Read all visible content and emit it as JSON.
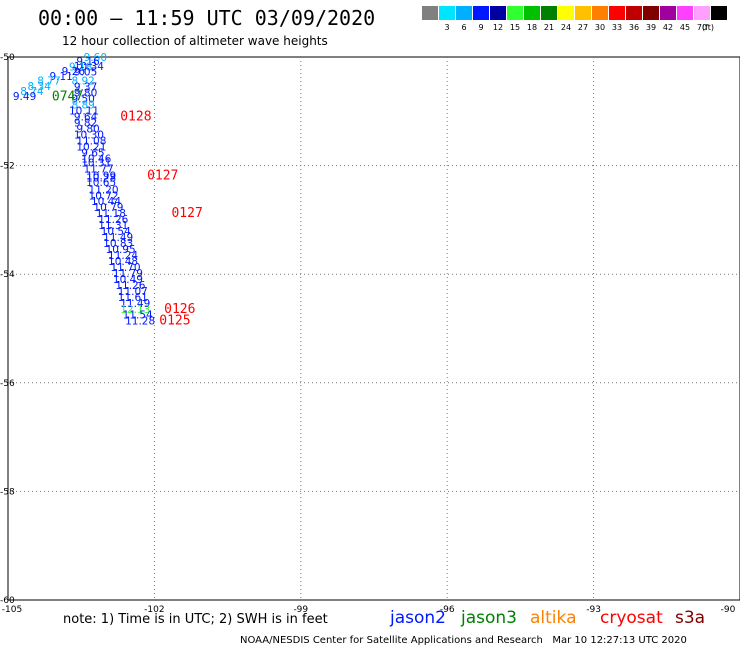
{
  "header": {
    "title": "00:00 – 11:59 UTC 03/09/2020",
    "subtitle": "12 hour collection of altimeter wave heights"
  },
  "scale": {
    "unit_label": "(ft)",
    "bins": [
      {
        "label": "",
        "color": "#808080"
      },
      {
        "label": "3",
        "color": "#00e5ff"
      },
      {
        "label": "6",
        "color": "#00b0ff"
      },
      {
        "label": "9",
        "color": "#0018ff"
      },
      {
        "label": "12",
        "color": "#0000a0"
      },
      {
        "label": "15",
        "color": "#30ff30"
      },
      {
        "label": "18",
        "color": "#00c000"
      },
      {
        "label": "21",
        "color": "#008000"
      },
      {
        "label": "24",
        "color": "#ffff00"
      },
      {
        "label": "27",
        "color": "#ffc000"
      },
      {
        "label": "30",
        "color": "#ff8000"
      },
      {
        "label": "33",
        "color": "#ff0000"
      },
      {
        "label": "36",
        "color": "#c00000"
      },
      {
        "label": "39",
        "color": "#800000"
      },
      {
        "label": "42",
        "color": "#a000a0"
      },
      {
        "label": "45",
        "color": "#ff40ff"
      },
      {
        "label": "70",
        "color": "#ffa0ff"
      },
      {
        "label": "",
        "color": "#000000"
      }
    ]
  },
  "axes": {
    "lon_ticks": [
      "-105",
      "-102",
      "-99",
      "-96",
      "-93",
      "-90"
    ],
    "lat_ticks": [
      "-50",
      "-52",
      "-54",
      "-56",
      "-58",
      "-60"
    ]
  },
  "tracks": {
    "left_track": [
      {
        "lon": -103.45,
        "lat": -50.07,
        "v": "9.60",
        "c": "#00b0ff"
      },
      {
        "lon": -103.6,
        "lat": -50.15,
        "v": "9.16",
        "c": "#0018ff"
      },
      {
        "lon": -103.65,
        "lat": -50.24,
        "v": "10.34",
        "c": "#0018ff"
      },
      {
        "lon": -103.75,
        "lat": -50.25,
        "v": "9.18",
        "c": "#00b0ff"
      },
      {
        "lon": -103.9,
        "lat": -50.33,
        "v": "9.26",
        "c": "#0018ff"
      },
      {
        "lon": -103.65,
        "lat": -50.34,
        "v": "9.05",
        "c": "#0018ff"
      },
      {
        "lon": -104.15,
        "lat": -50.42,
        "v": "9.11",
        "c": "#0018ff"
      },
      {
        "lon": -103.7,
        "lat": -50.51,
        "v": "8.92",
        "c": "#00b0ff"
      },
      {
        "lon": -104.4,
        "lat": -50.51,
        "v": "8.77",
        "c": "#00b0ff"
      },
      {
        "lon": -104.6,
        "lat": -50.61,
        "v": "8.34",
        "c": "#00b0ff"
      },
      {
        "lon": -103.65,
        "lat": -50.62,
        "v": "9.37",
        "c": "#0018ff"
      },
      {
        "lon": -104.75,
        "lat": -50.7,
        "v": "8.74",
        "c": "#00b0ff"
      },
      {
        "lon": -103.65,
        "lat": -50.73,
        "v": "9.80",
        "c": "#0018ff"
      },
      {
        "lon": -104.9,
        "lat": -50.79,
        "v": "9.49",
        "c": "#0018ff"
      },
      {
        "lon": -103.7,
        "lat": -50.84,
        "v": "9.50",
        "c": "#0018ff"
      },
      {
        "lon": -103.7,
        "lat": -50.95,
        "v": "8.89",
        "c": "#00b0ff"
      },
      {
        "lon": -103.75,
        "lat": -51.06,
        "v": "10.11",
        "c": "#0018ff"
      },
      {
        "lon": -103.65,
        "lat": -51.17,
        "v": "9.64",
        "c": "#0018ff"
      },
      {
        "lon": -103.65,
        "lat": -51.28,
        "v": "9.82",
        "c": "#0018ff"
      },
      {
        "lon": -103.6,
        "lat": -51.39,
        "v": "9.80",
        "c": "#0018ff"
      },
      {
        "lon": -103.65,
        "lat": -51.5,
        "v": "10.30",
        "c": "#0018ff"
      },
      {
        "lon": -103.6,
        "lat": -51.61,
        "v": "11.08",
        "c": "#0018ff"
      },
      {
        "lon": -103.6,
        "lat": -51.72,
        "v": "10.21",
        "c": "#0018ff"
      },
      {
        "lon": -103.5,
        "lat": -51.83,
        "v": "9.65",
        "c": "#0018ff"
      },
      {
        "lon": -103.5,
        "lat": -51.94,
        "v": "10.46",
        "c": "#0018ff"
      },
      {
        "lon": -103.5,
        "lat": -52.02,
        "v": "10.31",
        "c": "#0018ff"
      },
      {
        "lon": -103.45,
        "lat": -52.13,
        "v": "11.77",
        "c": "#0018ff"
      },
      {
        "lon": -103.4,
        "lat": -52.26,
        "v": "10.99",
        "c": "#0018ff"
      },
      {
        "lon": -103.4,
        "lat": -52.29,
        "v": "10.28",
        "c": "#0018ff"
      },
      {
        "lon": -103.4,
        "lat": -52.38,
        "v": "10.65",
        "c": "#0018ff"
      },
      {
        "lon": -103.35,
        "lat": -52.51,
        "v": "11.20",
        "c": "#0018ff"
      },
      {
        "lon": -103.35,
        "lat": -52.62,
        "v": "10.72",
        "c": "#0018ff"
      },
      {
        "lon": -103.3,
        "lat": -52.73,
        "v": "10.44",
        "c": "#0018ff"
      },
      {
        "lon": -103.25,
        "lat": -52.84,
        "v": "10.79",
        "c": "#0018ff"
      },
      {
        "lon": -103.2,
        "lat": -52.95,
        "v": "11.18",
        "c": "#0018ff"
      },
      {
        "lon": -103.15,
        "lat": -53.06,
        "v": "11.26",
        "c": "#0018ff"
      },
      {
        "lon": -103.15,
        "lat": -53.17,
        "v": "11.31",
        "c": "#0018ff"
      },
      {
        "lon": -103.1,
        "lat": -53.28,
        "v": "10.54",
        "c": "#0018ff"
      },
      {
        "lon": -103.05,
        "lat": -53.39,
        "v": "11.49",
        "c": "#0018ff"
      },
      {
        "lon": -103.05,
        "lat": -53.5,
        "v": "10.83",
        "c": "#0018ff"
      },
      {
        "lon": -103.0,
        "lat": -53.61,
        "v": "10.95",
        "c": "#0018ff"
      },
      {
        "lon": -102.95,
        "lat": -53.72,
        "v": "11.24",
        "c": "#0018ff"
      },
      {
        "lon": -102.95,
        "lat": -53.83,
        "v": "10.48",
        "c": "#0018ff"
      },
      {
        "lon": -102.9,
        "lat": -53.94,
        "v": "11.70",
        "c": "#0018ff"
      },
      {
        "lon": -102.85,
        "lat": -54.05,
        "v": "11.79",
        "c": "#0018ff"
      },
      {
        "lon": -102.85,
        "lat": -54.16,
        "v": "10.49",
        "c": "#0018ff"
      },
      {
        "lon": -102.8,
        "lat": -54.27,
        "v": "11.26",
        "c": "#0018ff"
      },
      {
        "lon": -102.75,
        "lat": -54.38,
        "v": "11.07",
        "c": "#0018ff"
      },
      {
        "lon": -102.75,
        "lat": -54.49,
        "v": "11.61",
        "c": "#0018ff"
      },
      {
        "lon": -102.7,
        "lat": -54.6,
        "v": "11.49",
        "c": "#0018ff"
      },
      {
        "lon": -102.7,
        "lat": -54.71,
        "v": "12.13",
        "c": "#30ff30"
      },
      {
        "lon": -102.65,
        "lat": -54.82,
        "v": "11.54",
        "c": "#0018ff"
      },
      {
        "lon": -102.6,
        "lat": -54.93,
        "v": "11.28",
        "c": "#0018ff"
      }
    ],
    "left_times": [
      {
        "lon": -104.1,
        "lat": -50.8,
        "t": "0747",
        "c": "#008000"
      },
      {
        "lon": -102.7,
        "lat": -51.17,
        "t": "0128",
        "c": "#ff0000"
      },
      {
        "lon": -102.15,
        "lat": -52.26,
        "t": "0127",
        "c": "#ff0000"
      },
      {
        "lon": -101.65,
        "lat": -52.95,
        "t": "0127",
        "c": "#ff0000"
      },
      {
        "lon": -101.8,
        "lat": -54.71,
        "t": "0126",
        "c": "#ff0000"
      },
      {
        "lon": -101.9,
        "lat": -54.93,
        "t": "0125",
        "c": "#ff0000"
      }
    ]
  },
  "annotations": {
    "note": "note: 1) Time is in UTC; 2) SWH is in feet",
    "footer": "NOAA/NESDIS Center for Satellite Applications and Research   Mar 10 12:27:13 UTC 2020"
  },
  "satellites": [
    {
      "name": "jason2",
      "color": "#0018ff"
    },
    {
      "name": "jason3",
      "color": "#008000"
    },
    {
      "name": "altika",
      "color": "#ff8000"
    },
    {
      "name": "cryosat",
      "color": "#ff0000"
    },
    {
      "name": "s3a",
      "color": "#800000"
    }
  ]
}
